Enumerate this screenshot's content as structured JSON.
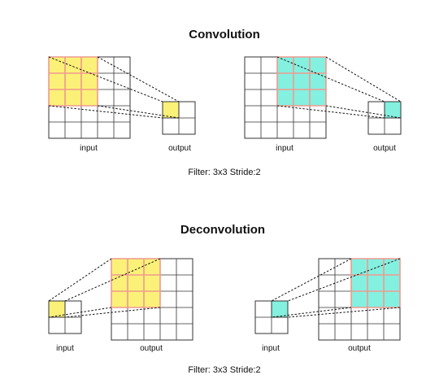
{
  "convolution": {
    "title": "Convolution",
    "caption": "Filter: 3x3    Stride:2",
    "left_input_label": "input",
    "left_output_label": "output",
    "right_input_label": "input",
    "right_output_label": "output"
  },
  "deconvolution": {
    "title": "Deconvolution",
    "caption": "Filter: 3x3    Stride:2",
    "left_input_label": "input",
    "left_output_label": "output",
    "right_input_label": "input",
    "right_output_label": "output"
  },
  "colors": {
    "yellow": "#fbf178",
    "cyan": "#84f0df",
    "filter_border": "#ee9a90",
    "grid": "#333333"
  },
  "diagrams": [
    {
      "section": "convolution",
      "big_side": "input",
      "small_side": "output",
      "filter_start": [
        0,
        0
      ],
      "highlight_cell": [
        0,
        0
      ],
      "color": "yellow"
    },
    {
      "section": "convolution",
      "big_side": "input",
      "small_side": "output",
      "filter_start": [
        2,
        0
      ],
      "highlight_cell": [
        1,
        0
      ],
      "color": "cyan"
    },
    {
      "section": "deconvolution",
      "big_side": "output",
      "small_side": "input",
      "filter_start": [
        0,
        0
      ],
      "highlight_cell": [
        0,
        0
      ],
      "color": "yellow"
    },
    {
      "section": "deconvolution",
      "big_side": "output",
      "small_side": "input",
      "filter_start": [
        2,
        0
      ],
      "highlight_cell": [
        1,
        0
      ],
      "color": "cyan"
    }
  ]
}
